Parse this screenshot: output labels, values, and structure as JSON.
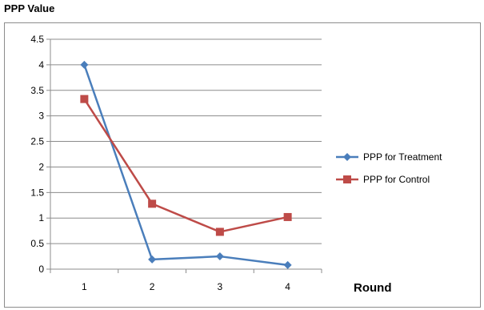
{
  "chart_data": {
    "type": "line",
    "title": "PPP Value",
    "xlabel": "Round",
    "ylabel": "",
    "categories": [
      "1",
      "2",
      "3",
      "4"
    ],
    "ylim": [
      0,
      4.5
    ],
    "yticks": [
      "0",
      "0.5",
      "1",
      "1.5",
      "2",
      "2.5",
      "3",
      "3.5",
      "4",
      "4.5"
    ],
    "grid": true,
    "legend_position": "right",
    "series": [
      {
        "name": "PPP for Treatment",
        "values": [
          4.0,
          0.19,
          0.25,
          0.08
        ],
        "color": "#4a7ebb",
        "marker": "diamond"
      },
      {
        "name": "PPP for Control",
        "values": [
          3.33,
          1.28,
          0.73,
          1.02
        ],
        "color": "#be4b48",
        "marker": "square"
      }
    ]
  }
}
